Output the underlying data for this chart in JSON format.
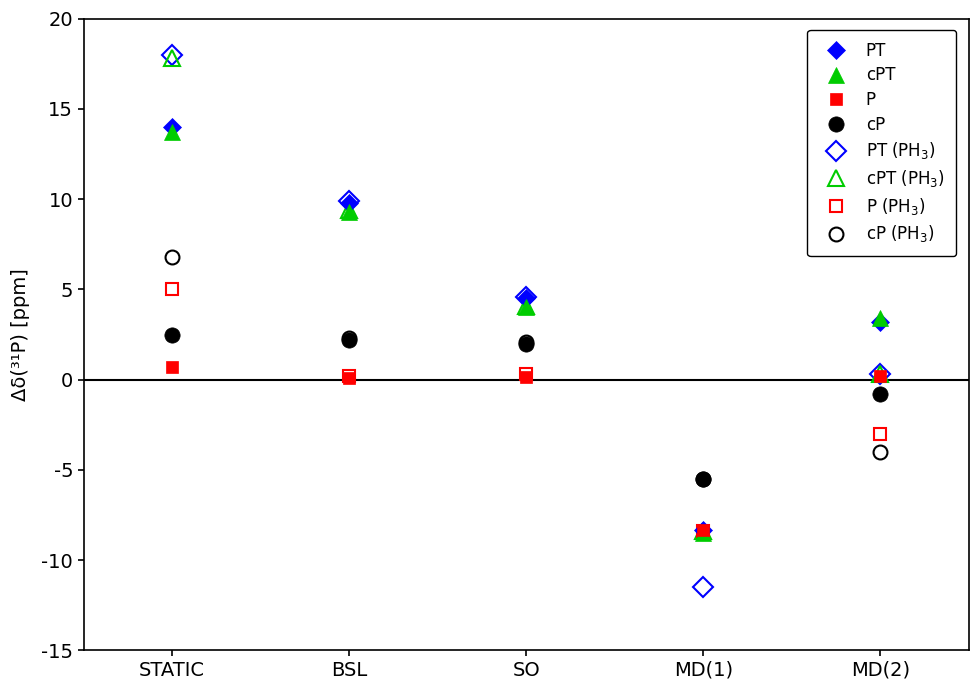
{
  "categories": [
    "STATIC",
    "BSL",
    "SO",
    "MD(1)",
    "MD(2)"
  ],
  "x_positions": [
    1,
    2,
    3,
    4,
    5
  ],
  "series": {
    "PT": {
      "values": [
        14.0,
        9.8,
        4.5,
        -8.3,
        3.2
      ],
      "color": "#0000FF",
      "marker": "D",
      "filled": true,
      "markersize": 9
    },
    "cPT": {
      "values": [
        13.7,
        9.3,
        4.0,
        -8.5,
        3.4
      ],
      "color": "#00CC00",
      "marker": "^",
      "filled": true,
      "markersize": 11
    },
    "P": {
      "values": [
        0.7,
        0.1,
        0.15,
        -8.3,
        0.2
      ],
      "color": "#FF0000",
      "marker": "s",
      "filled": true,
      "markersize": 9
    },
    "cP": {
      "values": [
        2.5,
        2.2,
        2.0,
        -5.5,
        -0.8
      ],
      "color": "#000000",
      "marker": "o",
      "filled": true,
      "markersize": 11
    },
    "PT (PH$_3$)": {
      "values": [
        18.0,
        9.9,
        4.6,
        -11.5,
        0.3
      ],
      "color": "#0000FF",
      "marker": "D",
      "filled": false,
      "markersize": 10
    },
    "cPT (PH$_3$)": {
      "values": [
        17.8,
        9.4,
        4.1,
        -8.4,
        0.3
      ],
      "color": "#00CC00",
      "marker": "^",
      "filled": false,
      "markersize": 12
    },
    "P (PH$_3$)": {
      "values": [
        5.0,
        0.2,
        0.3,
        -8.4,
        -3.0
      ],
      "color": "#FF0000",
      "marker": "s",
      "filled": false,
      "markersize": 9
    },
    "cP (PH$_3$)": {
      "values": [
        6.8,
        2.3,
        2.1,
        -5.5,
        -4.0
      ],
      "color": "#000000",
      "marker": "o",
      "filled": false,
      "markersize": 10
    }
  },
  "ylabel": "Δδ(³¹P) [ppm]",
  "ylim": [
    -15,
    20
  ],
  "yticks": [
    -15,
    -10,
    -5,
    0,
    5,
    10,
    15,
    20
  ],
  "xlim": [
    0.5,
    5.5
  ],
  "background_color": "#FFFFFF",
  "legend_labels_order": [
    "PT",
    "cPT",
    "P",
    "cP",
    "PT (PH$_3$)",
    "cPT (PH$_3$)",
    "P (PH$_3$)",
    "cP (PH$_3$)"
  ]
}
